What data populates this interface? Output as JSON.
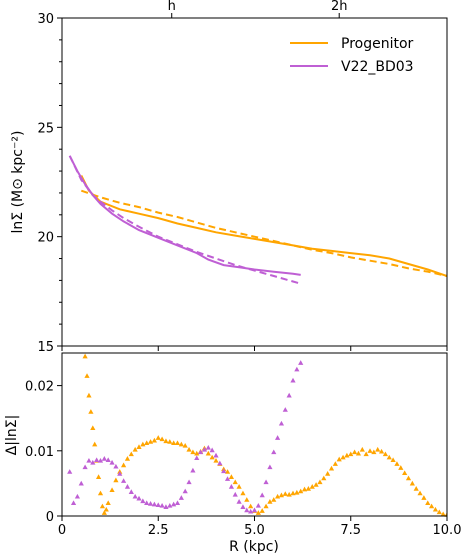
{
  "chart_data": {
    "colors": {
      "progenitor": "#ffa500",
      "v22": "#bf5fd4"
    },
    "top_axis_ticks": [
      {
        "value": 2.85,
        "label": "h"
      },
      {
        "value": 7.2,
        "label": "2h"
      }
    ],
    "panels": [
      {
        "id": "surface-density",
        "type": "line",
        "ylabel": "lnΣ (M⊙ kpc⁻²)",
        "xlim": [
          0,
          10
        ],
        "ylim": [
          15,
          30
        ],
        "yticks": [
          15,
          20,
          25,
          30
        ],
        "ytick_labels": [
          "15",
          "20",
          "25",
          "30"
        ],
        "yminor_step": 1,
        "legend": {
          "position": "top-right",
          "entries": [
            {
              "label": "Progenitor",
              "color_key": "progenitor"
            },
            {
              "label": "V22_BD03",
              "color_key": "v22"
            }
          ]
        },
        "series": [
          {
            "name": "Progenitor",
            "color_key": "progenitor",
            "dash": "solid",
            "x": [
              0.5,
              0.7,
              1.0,
              1.5,
              2.0,
              2.5,
              3.0,
              3.5,
              4.0,
              4.5,
              5.0,
              5.5,
              6.0,
              6.5,
              7.0,
              7.5,
              8.0,
              8.5,
              9.0,
              9.5,
              10.0
            ],
            "y": [
              22.8,
              22.1,
              21.6,
              21.25,
              21.05,
              20.85,
              20.6,
              20.4,
              20.2,
              20.05,
              19.9,
              19.75,
              19.6,
              19.45,
              19.35,
              19.25,
              19.15,
              19.0,
              18.75,
              18.5,
              18.2
            ]
          },
          {
            "name": "",
            "color_key": "progenitor",
            "dash": "dashed",
            "x": [
              0.5,
              1.0,
              1.5,
              2.0,
              2.5,
              3.0,
              3.5,
              4.0,
              4.5,
              5.0,
              5.5,
              6.0,
              6.5,
              7.0,
              7.5,
              8.0,
              8.5,
              9.0,
              9.5,
              10.0
            ],
            "y": [
              22.1,
              21.8,
              21.55,
              21.35,
              21.1,
              20.9,
              20.65,
              20.4,
              20.2,
              20.0,
              19.8,
              19.6,
              19.4,
              19.25,
              19.05,
              18.9,
              18.75,
              18.55,
              18.4,
              18.2
            ]
          },
          {
            "name": "V22_BD03",
            "color_key": "v22",
            "dash": "solid",
            "x": [
              0.2,
              0.4,
              0.6,
              0.8,
              1.0,
              1.3,
              1.6,
              2.0,
              2.5,
              3.0,
              3.5,
              3.8,
              4.2,
              4.6,
              5.0,
              5.5,
              6.0,
              6.2
            ],
            "y": [
              23.7,
              23.0,
              22.4,
              21.9,
              21.5,
              21.05,
              20.7,
              20.3,
              19.95,
              19.6,
              19.25,
              18.95,
              18.7,
              18.6,
              18.5,
              18.4,
              18.3,
              18.25
            ]
          },
          {
            "name": "",
            "color_key": "v22",
            "dash": "dashed",
            "x": [
              0.2,
              0.5,
              0.8,
              1.0,
              1.3,
              1.6,
              2.0,
              2.5,
              3.0,
              3.5,
              4.0,
              4.5,
              5.0,
              5.5,
              6.0,
              6.2
            ],
            "y": [
              23.7,
              22.6,
              21.9,
              21.6,
              21.2,
              20.85,
              20.45,
              20.0,
              19.65,
              19.3,
              19.0,
              18.7,
              18.45,
              18.2,
              17.95,
              17.85
            ]
          }
        ]
      },
      {
        "id": "residual",
        "type": "scatter",
        "ylabel": "Δ|lnΣ|",
        "xlabel": "R (kpc)",
        "xlim": [
          0,
          10
        ],
        "ylim": [
          0,
          0.025
        ],
        "xticks": [
          0,
          2.5,
          5.0,
          7.5,
          10.0
        ],
        "xtick_labels": [
          "0",
          "2.5",
          "5.0",
          "7.5",
          "10.0"
        ],
        "yticks": [
          0,
          0.01,
          0.02
        ],
        "ytick_labels": [
          "0",
          "0.01",
          "0.02"
        ],
        "series": [
          {
            "name": "",
            "color_key": "progenitor",
            "marker": "triangle",
            "x": [
              0.6,
              0.65,
              0.7,
              0.75,
              0.8,
              0.85,
              0.9,
              0.95,
              1.0,
              1.05,
              1.1,
              1.15,
              1.2,
              1.3,
              1.4,
              1.5,
              1.6,
              1.7,
              1.8,
              1.9,
              2.0,
              2.1,
              2.2,
              2.3,
              2.4,
              2.5,
              2.6,
              2.7,
              2.8,
              2.9,
              3.0,
              3.1,
              3.2,
              3.3,
              3.4,
              3.5,
              3.6,
              3.7,
              3.8,
              3.9,
              4.0,
              4.1,
              4.2,
              4.3,
              4.4,
              4.5,
              4.6,
              4.7,
              4.8,
              4.9,
              5.0,
              5.1,
              5.2,
              5.3,
              5.4,
              5.5,
              5.6,
              5.7,
              5.8,
              5.9,
              6.0,
              6.1,
              6.2,
              6.3,
              6.4,
              6.5,
              6.6,
              6.7,
              6.8,
              6.9,
              7.0,
              7.1,
              7.2,
              7.3,
              7.4,
              7.5,
              7.6,
              7.7,
              7.8,
              7.9,
              8.0,
              8.1,
              8.2,
              8.3,
              8.4,
              8.5,
              8.6,
              8.7,
              8.8,
              8.9,
              9.0,
              9.1,
              9.2,
              9.3,
              9.4,
              9.5,
              9.6,
              9.7,
              9.8,
              9.9,
              10.0
            ],
            "y": [
              0.0245,
              0.0215,
              0.0185,
              0.016,
              0.0135,
              0.011,
              0.0085,
              0.006,
              0.0035,
              0.0015,
              0.0005,
              0.001,
              0.002,
              0.004,
              0.0055,
              0.0068,
              0.0078,
              0.0088,
              0.0095,
              0.0102,
              0.0106,
              0.011,
              0.0112,
              0.0114,
              0.0116,
              0.012,
              0.0118,
              0.0115,
              0.0114,
              0.0112,
              0.0112,
              0.011,
              0.0108,
              0.0102,
              0.0098,
              0.0096,
              0.0099,
              0.0104,
              0.0096,
              0.009,
              0.0085,
              0.008,
              0.0072,
              0.0068,
              0.006,
              0.0052,
              0.0045,
              0.0035,
              0.0025,
              0.0015,
              0.0008,
              0.0005,
              0.0008,
              0.0015,
              0.0022,
              0.0025,
              0.003,
              0.0032,
              0.0034,
              0.0033,
              0.0035,
              0.0036,
              0.0038,
              0.0041,
              0.0042,
              0.0045,
              0.0048,
              0.0052,
              0.0058,
              0.0065,
              0.0073,
              0.008,
              0.0087,
              0.009,
              0.0093,
              0.0095,
              0.0098,
              0.0096,
              0.0102,
              0.0095,
              0.01,
              0.0098,
              0.0102,
              0.0099,
              0.0095,
              0.009,
              0.0086,
              0.008,
              0.0074,
              0.0066,
              0.0058,
              0.005,
              0.0042,
              0.0035,
              0.0028,
              0.002,
              0.0015,
              0.001,
              0.0006,
              0.0003,
              0.0002
            ]
          },
          {
            "name": "",
            "color_key": "v22",
            "marker": "triangle",
            "x": [
              0.2,
              0.3,
              0.4,
              0.5,
              0.6,
              0.7,
              0.8,
              0.9,
              1.0,
              1.1,
              1.2,
              1.3,
              1.4,
              1.5,
              1.6,
              1.7,
              1.8,
              1.9,
              2.0,
              2.1,
              2.2,
              2.3,
              2.4,
              2.5,
              2.6,
              2.7,
              2.8,
              2.9,
              3.0,
              3.1,
              3.2,
              3.3,
              3.4,
              3.5,
              3.6,
              3.7,
              3.8,
              3.9,
              4.0,
              4.1,
              4.2,
              4.3,
              4.4,
              4.5,
              4.6,
              4.7,
              4.8,
              4.9,
              5.0,
              5.1,
              5.2,
              5.3,
              5.4,
              5.5,
              5.6,
              5.7,
              5.8,
              5.9,
              6.0,
              6.1,
              6.2
            ],
            "y": [
              0.0068,
              0.002,
              0.003,
              0.005,
              0.0075,
              0.0085,
              0.0082,
              0.0086,
              0.0085,
              0.0088,
              0.0086,
              0.0082,
              0.0076,
              0.0065,
              0.0054,
              0.0045,
              0.0037,
              0.003,
              0.0027,
              0.0023,
              0.002,
              0.0019,
              0.0018,
              0.0017,
              0.0016,
              0.0014,
              0.0016,
              0.0018,
              0.002,
              0.0028,
              0.0038,
              0.0052,
              0.007,
              0.0089,
              0.0098,
              0.0102,
              0.0105,
              0.0101,
              0.0093,
              0.0081,
              0.0069,
              0.0057,
              0.0045,
              0.0033,
              0.0022,
              0.0014,
              0.0009,
              0.0007,
              0.0009,
              0.0016,
              0.0032,
              0.0052,
              0.0075,
              0.0098,
              0.012,
              0.0142,
              0.0163,
              0.0185,
              0.0208,
              0.0225,
              0.0235
            ]
          }
        ]
      }
    ]
  }
}
